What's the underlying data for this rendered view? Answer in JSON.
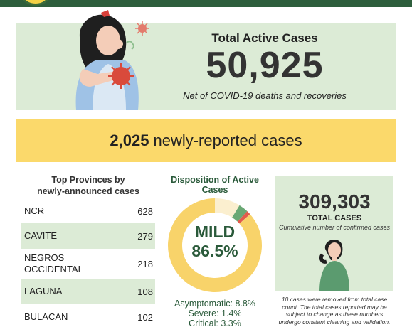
{
  "active": {
    "title": "Total Active Cases",
    "number": "50,925",
    "subtitle": "Net of COVID-19 deaths and recoveries"
  },
  "new_cases": {
    "number": "2,025",
    "label": "newly-reported cases"
  },
  "provinces": {
    "title_line1": "Top Provinces by",
    "title_line2": "newly-announced cases",
    "rows": [
      {
        "name": "NCR",
        "value": "628"
      },
      {
        "name": "CAVITE",
        "value": "279"
      },
      {
        "name": "NEGROS OCCIDENTAL",
        "value": "218"
      },
      {
        "name": "LAGUNA",
        "value": "108"
      },
      {
        "name": "BULACAN",
        "value": "102"
      }
    ]
  },
  "disposition": {
    "title": "Disposition of Active Cases",
    "mild_label": "MILD",
    "mild_value": "86.5%",
    "legend": [
      "Asymptomatic: 8.8%",
      "Severe: 1.4%",
      "Critical: 3.3%"
    ],
    "shares": {
      "mild": 86.5,
      "asymptomatic": 8.8,
      "severe": 1.4,
      "critical": 3.3
    },
    "colors": {
      "mild": "#f8d36a",
      "asymptomatic": "#fbefcf",
      "severe": "#e25b4b",
      "critical": "#6aa874"
    }
  },
  "total": {
    "number": "309,303",
    "label": "TOTAL CASES",
    "subtitle": "Cumulative number of confirmed cases",
    "note": "10 cases were removed from total case count. The total cases reported may be subject to change as these numbers undergo constant cleaning and validation."
  },
  "colors": {
    "header": "#2e5e3c",
    "panel_green": "#dcebd6",
    "banner_yellow": "#fbd96b",
    "dark_green_text": "#2a5a3a"
  },
  "icons": [
    "seal-logo",
    "coughing-woman-illustration",
    "person-illustration"
  ]
}
